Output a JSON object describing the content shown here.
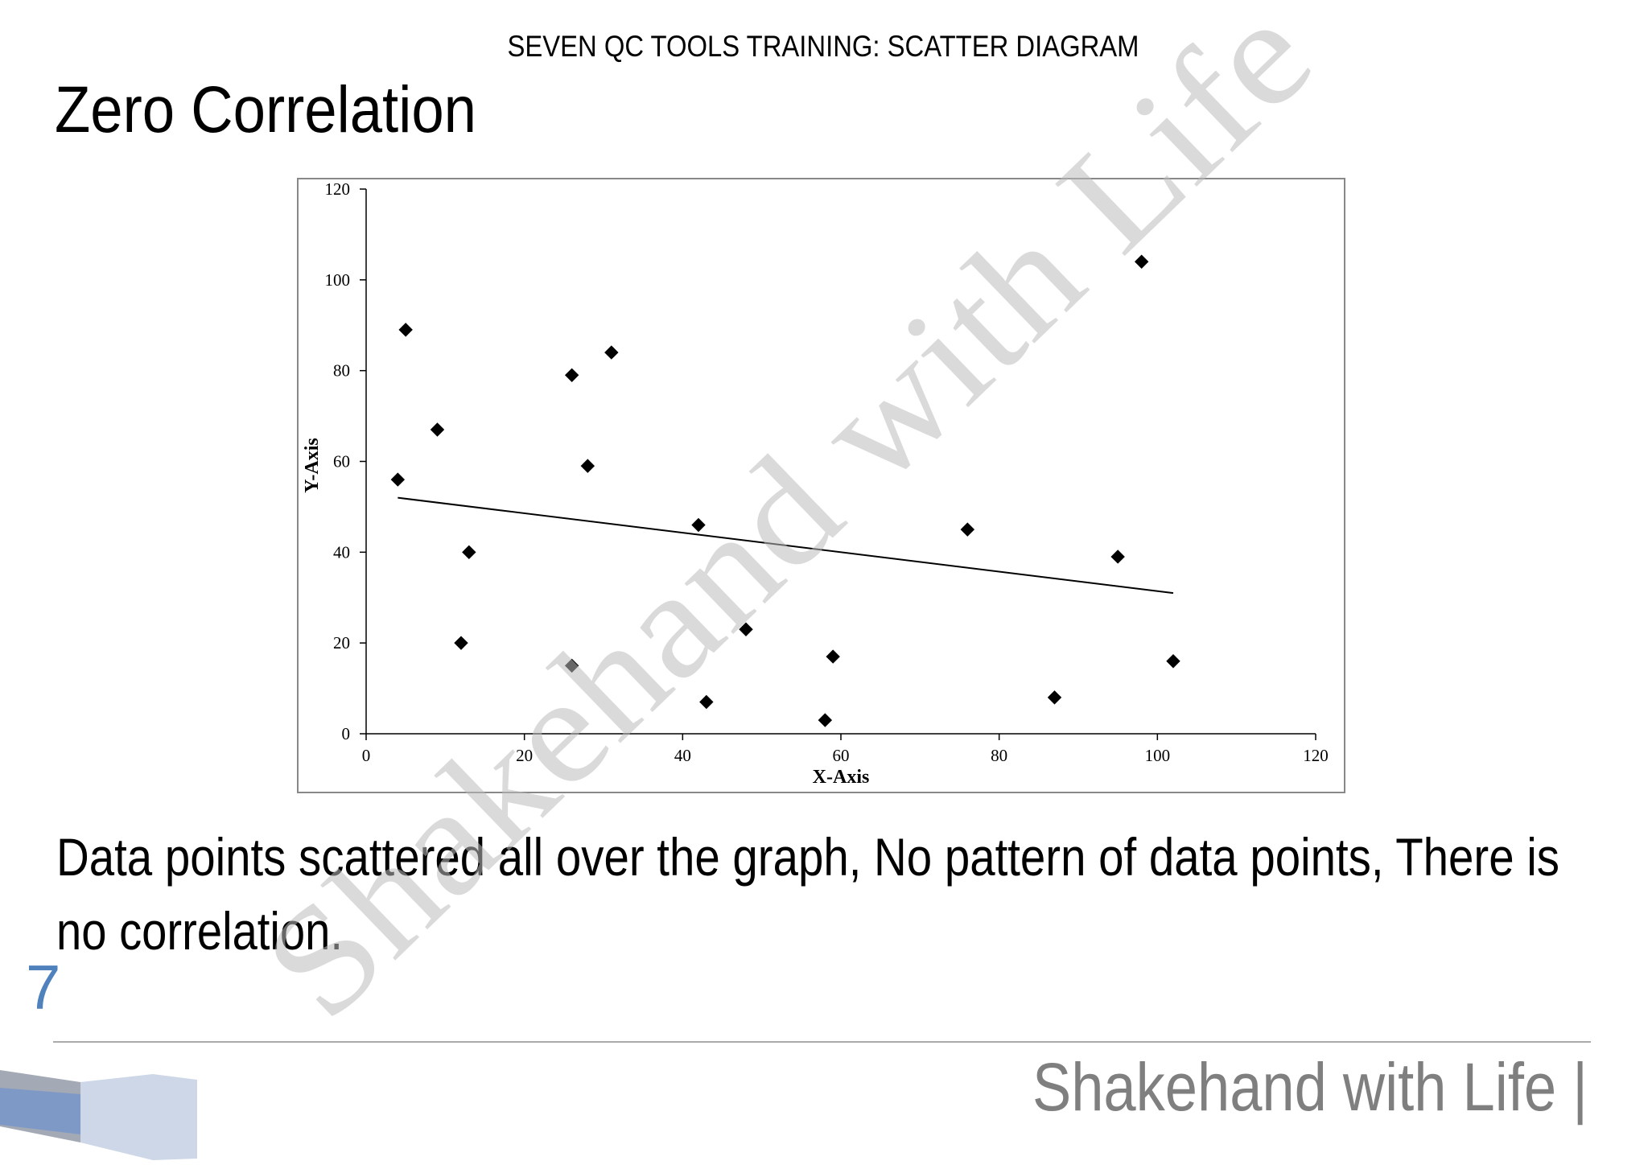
{
  "header": "SEVEN QC TOOLS TRAINING:  SCATTER DIAGRAM",
  "title": "Zero Correlation",
  "watermark": "Shakehand with Life",
  "chart_data": {
    "type": "scatter",
    "xlabel": "X-Axis",
    "ylabel": "Y-Axis",
    "x": [
      5,
      9,
      4,
      13,
      12,
      26,
      31,
      28,
      26,
      42,
      43,
      48,
      58,
      59,
      76,
      87,
      95,
      98,
      102
    ],
    "values": [
      89,
      67,
      56,
      40,
      20,
      79,
      84,
      59,
      15,
      46,
      7,
      23,
      3,
      17,
      45,
      8,
      39,
      104,
      16
    ],
    "color": "#000000",
    "trendline": {
      "x": [
        4,
        102
      ],
      "y": [
        52,
        31
      ],
      "color": "#000000"
    },
    "xlim": [
      0,
      120
    ],
    "xticks": [
      0,
      20,
      40,
      60,
      80,
      100,
      120
    ],
    "ylim": [
      0,
      120
    ],
    "yticks": [
      0,
      20,
      40,
      60,
      80,
      100,
      120
    ],
    "grid": false
  },
  "body_lines": [
    "Data points scattered all over the graph, No pattern of data points, There is",
    "no correlation."
  ],
  "page_number": "7",
  "footer": "Shakehand with Life |"
}
